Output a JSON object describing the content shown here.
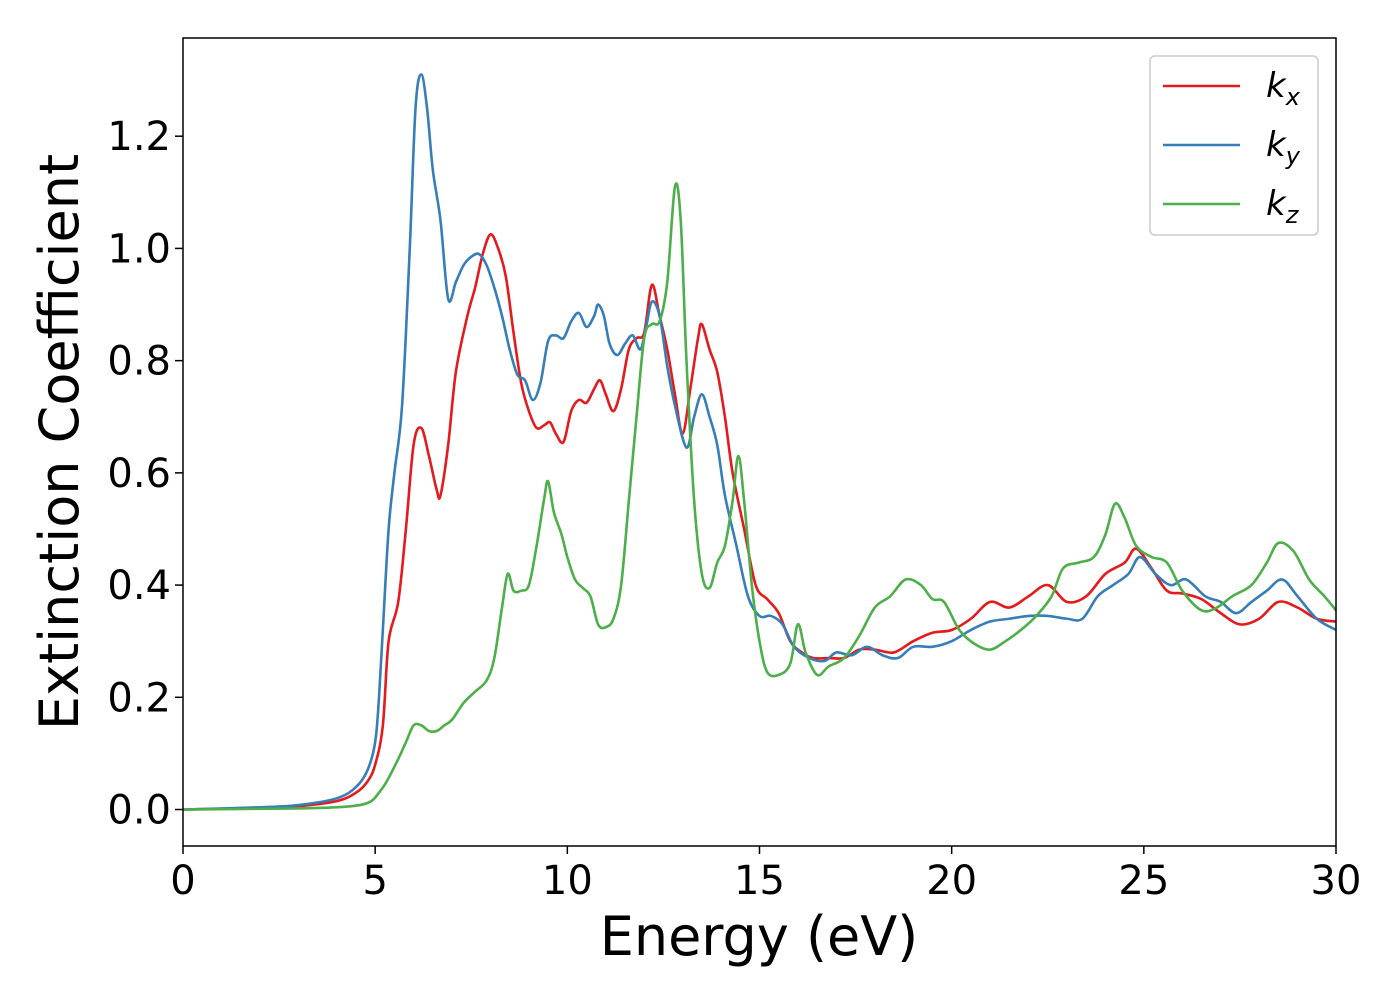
{
  "chart_data": {
    "type": "line",
    "title": "",
    "xlabel": "Energy (eV)",
    "ylabel": "Extinction Coefficient",
    "xlim": [
      0,
      30
    ],
    "ylim": [
      -0.065,
      1.375
    ],
    "xticks": [
      0,
      5,
      10,
      15,
      20,
      25,
      30
    ],
    "xtick_labels": [
      "0",
      "5",
      "10",
      "15",
      "20",
      "25",
      "30"
    ],
    "yticks": [
      0.0,
      0.2,
      0.4,
      0.6,
      0.8,
      1.0,
      1.2
    ],
    "ytick_labels": [
      "0.0",
      "0.2",
      "0.4",
      "0.6",
      "0.8",
      "1.0",
      "1.2"
    ],
    "grid": false,
    "legend_position": "top-right",
    "series": [
      {
        "name": "kx",
        "label_main": "k",
        "label_sub": "x",
        "color": "#e41a1c",
        "points": [
          [
            0,
            0
          ],
          [
            2,
            0.003
          ],
          [
            3,
            0.006
          ],
          [
            4,
            0.015
          ],
          [
            4.5,
            0.03
          ],
          [
            4.8,
            0.05
          ],
          [
            5,
            0.08
          ],
          [
            5.2,
            0.15
          ],
          [
            5.35,
            0.3
          ],
          [
            5.6,
            0.37
          ],
          [
            5.8,
            0.5
          ],
          [
            6,
            0.65
          ],
          [
            6.2,
            0.68
          ],
          [
            6.4,
            0.63
          ],
          [
            6.6,
            0.57
          ],
          [
            6.7,
            0.56
          ],
          [
            6.9,
            0.65
          ],
          [
            7.1,
            0.78
          ],
          [
            7.4,
            0.88
          ],
          [
            7.6,
            0.93
          ],
          [
            7.8,
            0.99
          ],
          [
            8.0,
            1.025
          ],
          [
            8.2,
            1.0
          ],
          [
            8.4,
            0.95
          ],
          [
            8.6,
            0.85
          ],
          [
            8.8,
            0.76
          ],
          [
            9.0,
            0.71
          ],
          [
            9.2,
            0.68
          ],
          [
            9.4,
            0.685
          ],
          [
            9.55,
            0.69
          ],
          [
            9.7,
            0.67
          ],
          [
            9.9,
            0.655
          ],
          [
            10.1,
            0.71
          ],
          [
            10.3,
            0.73
          ],
          [
            10.5,
            0.725
          ],
          [
            10.7,
            0.75
          ],
          [
            10.85,
            0.765
          ],
          [
            11.0,
            0.74
          ],
          [
            11.2,
            0.71
          ],
          [
            11.4,
            0.75
          ],
          [
            11.6,
            0.82
          ],
          [
            11.8,
            0.84
          ],
          [
            12.0,
            0.85
          ],
          [
            12.2,
            0.935
          ],
          [
            12.4,
            0.88
          ],
          [
            12.6,
            0.82
          ],
          [
            12.8,
            0.74
          ],
          [
            13.0,
            0.67
          ],
          [
            13.2,
            0.75
          ],
          [
            13.4,
            0.84
          ],
          [
            13.5,
            0.865
          ],
          [
            13.7,
            0.82
          ],
          [
            13.9,
            0.78
          ],
          [
            14.1,
            0.7
          ],
          [
            14.3,
            0.6
          ],
          [
            14.6,
            0.5
          ],
          [
            14.9,
            0.4
          ],
          [
            15.2,
            0.375
          ],
          [
            15.5,
            0.35
          ],
          [
            15.8,
            0.3
          ],
          [
            16.1,
            0.28
          ],
          [
            16.4,
            0.27
          ],
          [
            16.8,
            0.27
          ],
          [
            17.2,
            0.27
          ],
          [
            17.6,
            0.285
          ],
          [
            18.0,
            0.285
          ],
          [
            18.5,
            0.28
          ],
          [
            19.0,
            0.3
          ],
          [
            19.5,
            0.315
          ],
          [
            20.0,
            0.32
          ],
          [
            20.5,
            0.34
          ],
          [
            21.0,
            0.37
          ],
          [
            21.5,
            0.36
          ],
          [
            22.0,
            0.38
          ],
          [
            22.5,
            0.4
          ],
          [
            23.0,
            0.37
          ],
          [
            23.5,
            0.38
          ],
          [
            24.0,
            0.42
          ],
          [
            24.5,
            0.44
          ],
          [
            24.8,
            0.465
          ],
          [
            25.2,
            0.43
          ],
          [
            25.6,
            0.39
          ],
          [
            26.0,
            0.385
          ],
          [
            26.5,
            0.375
          ],
          [
            27.0,
            0.35
          ],
          [
            27.5,
            0.33
          ],
          [
            28.0,
            0.34
          ],
          [
            28.5,
            0.37
          ],
          [
            29.0,
            0.36
          ],
          [
            29.5,
            0.34
          ],
          [
            30.0,
            0.335
          ]
        ]
      },
      {
        "name": "ky",
        "label_main": "k",
        "label_sub": "y",
        "color": "#377eb8",
        "points": [
          [
            0,
            0
          ],
          [
            2,
            0.004
          ],
          [
            3,
            0.008
          ],
          [
            4,
            0.02
          ],
          [
            4.5,
            0.04
          ],
          [
            4.8,
            0.07
          ],
          [
            5.0,
            0.12
          ],
          [
            5.1,
            0.2
          ],
          [
            5.2,
            0.32
          ],
          [
            5.35,
            0.5
          ],
          [
            5.5,
            0.6
          ],
          [
            5.7,
            0.72
          ],
          [
            5.9,
            1.0
          ],
          [
            6.05,
            1.25
          ],
          [
            6.2,
            1.31
          ],
          [
            6.35,
            1.25
          ],
          [
            6.5,
            1.14
          ],
          [
            6.7,
            1.05
          ],
          [
            6.9,
            0.91
          ],
          [
            7.1,
            0.94
          ],
          [
            7.3,
            0.97
          ],
          [
            7.5,
            0.985
          ],
          [
            7.7,
            0.99
          ],
          [
            7.9,
            0.97
          ],
          [
            8.1,
            0.93
          ],
          [
            8.3,
            0.88
          ],
          [
            8.5,
            0.82
          ],
          [
            8.7,
            0.775
          ],
          [
            8.9,
            0.765
          ],
          [
            9.1,
            0.73
          ],
          [
            9.3,
            0.76
          ],
          [
            9.5,
            0.835
          ],
          [
            9.7,
            0.845
          ],
          [
            9.9,
            0.84
          ],
          [
            10.1,
            0.87
          ],
          [
            10.3,
            0.885
          ],
          [
            10.5,
            0.86
          ],
          [
            10.7,
            0.88
          ],
          [
            10.8,
            0.9
          ],
          [
            10.95,
            0.88
          ],
          [
            11.1,
            0.83
          ],
          [
            11.3,
            0.81
          ],
          [
            11.5,
            0.83
          ],
          [
            11.7,
            0.845
          ],
          [
            11.9,
            0.82
          ],
          [
            12.05,
            0.86
          ],
          [
            12.2,
            0.905
          ],
          [
            12.4,
            0.88
          ],
          [
            12.6,
            0.79
          ],
          [
            12.8,
            0.72
          ],
          [
            13.1,
            0.645
          ],
          [
            13.3,
            0.7
          ],
          [
            13.5,
            0.74
          ],
          [
            13.7,
            0.7
          ],
          [
            13.9,
            0.65
          ],
          [
            14.1,
            0.56
          ],
          [
            14.4,
            0.47
          ],
          [
            14.7,
            0.38
          ],
          [
            15.0,
            0.345
          ],
          [
            15.3,
            0.345
          ],
          [
            15.6,
            0.33
          ],
          [
            15.9,
            0.29
          ],
          [
            16.3,
            0.27
          ],
          [
            16.7,
            0.265
          ],
          [
            17.0,
            0.28
          ],
          [
            17.4,
            0.275
          ],
          [
            17.8,
            0.29
          ],
          [
            18.2,
            0.275
          ],
          [
            18.6,
            0.27
          ],
          [
            19.0,
            0.29
          ],
          [
            19.5,
            0.29
          ],
          [
            20.0,
            0.3
          ],
          [
            20.5,
            0.32
          ],
          [
            21.0,
            0.335
          ],
          [
            21.5,
            0.34
          ],
          [
            22.0,
            0.345
          ],
          [
            22.5,
            0.345
          ],
          [
            23.0,
            0.34
          ],
          [
            23.4,
            0.34
          ],
          [
            23.8,
            0.38
          ],
          [
            24.2,
            0.4
          ],
          [
            24.6,
            0.42
          ],
          [
            24.9,
            0.45
          ],
          [
            25.3,
            0.42
          ],
          [
            25.7,
            0.4
          ],
          [
            26.1,
            0.41
          ],
          [
            26.6,
            0.38
          ],
          [
            27.0,
            0.37
          ],
          [
            27.4,
            0.35
          ],
          [
            27.8,
            0.37
          ],
          [
            28.2,
            0.39
          ],
          [
            28.6,
            0.41
          ],
          [
            29.0,
            0.38
          ],
          [
            29.5,
            0.34
          ],
          [
            30.0,
            0.32
          ]
        ]
      },
      {
        "name": "kz",
        "label_main": "k",
        "label_sub": "z",
        "color": "#4daf4a",
        "points": [
          [
            0,
            0
          ],
          [
            3,
            0.002
          ],
          [
            4,
            0.004
          ],
          [
            4.6,
            0.008
          ],
          [
            4.9,
            0.015
          ],
          [
            5.1,
            0.03
          ],
          [
            5.3,
            0.05
          ],
          [
            5.6,
            0.09
          ],
          [
            5.8,
            0.12
          ],
          [
            6.0,
            0.15
          ],
          [
            6.2,
            0.15
          ],
          [
            6.4,
            0.14
          ],
          [
            6.6,
            0.14
          ],
          [
            6.8,
            0.15
          ],
          [
            7.0,
            0.16
          ],
          [
            7.3,
            0.19
          ],
          [
            7.6,
            0.21
          ],
          [
            7.9,
            0.23
          ],
          [
            8.1,
            0.27
          ],
          [
            8.3,
            0.36
          ],
          [
            8.45,
            0.42
          ],
          [
            8.6,
            0.39
          ],
          [
            8.8,
            0.39
          ],
          [
            9.0,
            0.4
          ],
          [
            9.2,
            0.47
          ],
          [
            9.4,
            0.555
          ],
          [
            9.5,
            0.585
          ],
          [
            9.65,
            0.53
          ],
          [
            9.85,
            0.49
          ],
          [
            10.0,
            0.45
          ],
          [
            10.2,
            0.41
          ],
          [
            10.4,
            0.395
          ],
          [
            10.6,
            0.38
          ],
          [
            10.8,
            0.33
          ],
          [
            11.0,
            0.325
          ],
          [
            11.2,
            0.34
          ],
          [
            11.4,
            0.4
          ],
          [
            11.6,
            0.55
          ],
          [
            11.8,
            0.7
          ],
          [
            12.0,
            0.84
          ],
          [
            12.2,
            0.865
          ],
          [
            12.4,
            0.87
          ],
          [
            12.6,
            0.94
          ],
          [
            12.8,
            1.11
          ],
          [
            12.95,
            1.05
          ],
          [
            13.1,
            0.8
          ],
          [
            13.3,
            0.55
          ],
          [
            13.5,
            0.42
          ],
          [
            13.7,
            0.395
          ],
          [
            13.9,
            0.44
          ],
          [
            14.1,
            0.47
          ],
          [
            14.3,
            0.55
          ],
          [
            14.45,
            0.63
          ],
          [
            14.6,
            0.55
          ],
          [
            14.8,
            0.4
          ],
          [
            15.0,
            0.3
          ],
          [
            15.2,
            0.245
          ],
          [
            15.5,
            0.24
          ],
          [
            15.8,
            0.26
          ],
          [
            16.0,
            0.33
          ],
          [
            16.2,
            0.28
          ],
          [
            16.5,
            0.24
          ],
          [
            16.8,
            0.255
          ],
          [
            17.2,
            0.27
          ],
          [
            17.6,
            0.31
          ],
          [
            18.0,
            0.36
          ],
          [
            18.4,
            0.38
          ],
          [
            18.8,
            0.41
          ],
          [
            19.2,
            0.4
          ],
          [
            19.5,
            0.375
          ],
          [
            19.8,
            0.37
          ],
          [
            20.2,
            0.32
          ],
          [
            20.6,
            0.295
          ],
          [
            21.0,
            0.285
          ],
          [
            21.4,
            0.3
          ],
          [
            21.8,
            0.32
          ],
          [
            22.2,
            0.345
          ],
          [
            22.6,
            0.38
          ],
          [
            22.9,
            0.43
          ],
          [
            23.3,
            0.44
          ],
          [
            23.7,
            0.45
          ],
          [
            24.0,
            0.49
          ],
          [
            24.25,
            0.545
          ],
          [
            24.5,
            0.52
          ],
          [
            24.8,
            0.47
          ],
          [
            25.2,
            0.45
          ],
          [
            25.6,
            0.44
          ],
          [
            26.0,
            0.39
          ],
          [
            26.5,
            0.355
          ],
          [
            26.9,
            0.36
          ],
          [
            27.3,
            0.38
          ],
          [
            27.8,
            0.4
          ],
          [
            28.2,
            0.44
          ],
          [
            28.5,
            0.475
          ],
          [
            28.9,
            0.46
          ],
          [
            29.3,
            0.41
          ],
          [
            29.7,
            0.38
          ],
          [
            30.0,
            0.355
          ]
        ]
      }
    ]
  }
}
